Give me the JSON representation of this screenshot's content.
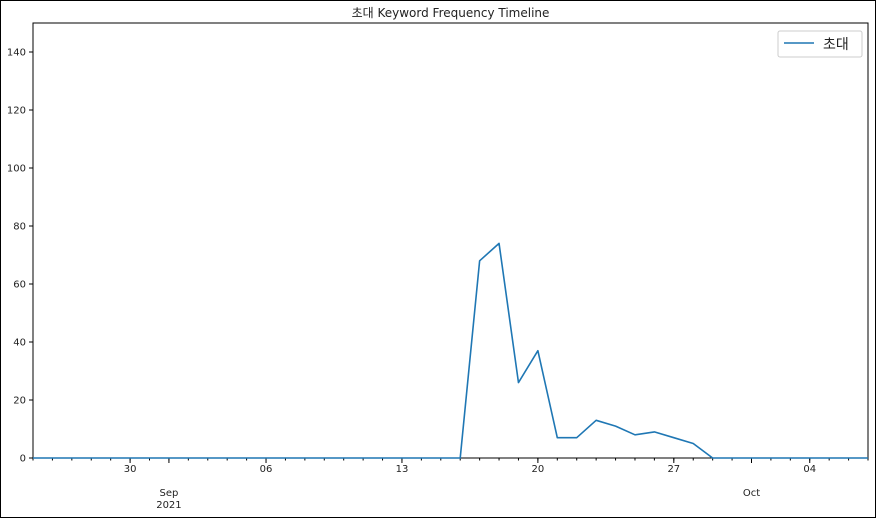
{
  "chart_data": {
    "type": "line",
    "title": "초대 Keyword Frequency Timeline",
    "xlabel": "",
    "ylabel": "",
    "ylim": [
      0,
      150
    ],
    "xlim": [
      "2021-08-25",
      "2021-10-07"
    ],
    "yticks": [
      0,
      20,
      40,
      60,
      80,
      100,
      120,
      140
    ],
    "xticks_major": [
      {
        "date": "2021-08-30",
        "label": "30"
      },
      {
        "date": "2021-09-06",
        "label": "06"
      },
      {
        "date": "2021-09-13",
        "label": "13"
      },
      {
        "date": "2021-09-20",
        "label": "20"
      },
      {
        "date": "2021-09-27",
        "label": "27"
      },
      {
        "date": "2021-10-04",
        "label": "04"
      }
    ],
    "month_labels": [
      {
        "date": "2021-09-01",
        "lines": [
          "Sep",
          "2021"
        ]
      },
      {
        "date": "2021-10-01",
        "lines": [
          "Oct"
        ]
      }
    ],
    "grid": false,
    "legend_position": "top-right",
    "color": "#1f77b4",
    "series": [
      {
        "name": "초대",
        "x": [
          "2021-08-25",
          "2021-08-26",
          "2021-08-27",
          "2021-08-28",
          "2021-08-29",
          "2021-08-30",
          "2021-08-31",
          "2021-09-01",
          "2021-09-02",
          "2021-09-03",
          "2021-09-04",
          "2021-09-05",
          "2021-09-06",
          "2021-09-07",
          "2021-09-08",
          "2021-09-09",
          "2021-09-10",
          "2021-09-11",
          "2021-09-12",
          "2021-09-13",
          "2021-09-14",
          "2021-09-15",
          "2021-09-16",
          "2021-09-17",
          "2021-09-18",
          "2021-09-19",
          "2021-09-20",
          "2021-09-21",
          "2021-09-22",
          "2021-09-23",
          "2021-09-24",
          "2021-09-25",
          "2021-09-26",
          "2021-09-27",
          "2021-09-28",
          "2021-09-29",
          "2021-09-30",
          "2021-10-01",
          "2021-10-02",
          "2021-10-03",
          "2021-10-04",
          "2021-10-05",
          "2021-10-06",
          "2021-10-07"
        ],
        "values": [
          0,
          0,
          0,
          0,
          0,
          0,
          0,
          0,
          0,
          0,
          0,
          0,
          0,
          0,
          0,
          0,
          0,
          0,
          0,
          0,
          0,
          0,
          0,
          68,
          74,
          26,
          37,
          7,
          7,
          13,
          11,
          8,
          9,
          7,
          5,
          0,
          0,
          0,
          0,
          0,
          0,
          0,
          0,
          0
        ]
      }
    ]
  }
}
